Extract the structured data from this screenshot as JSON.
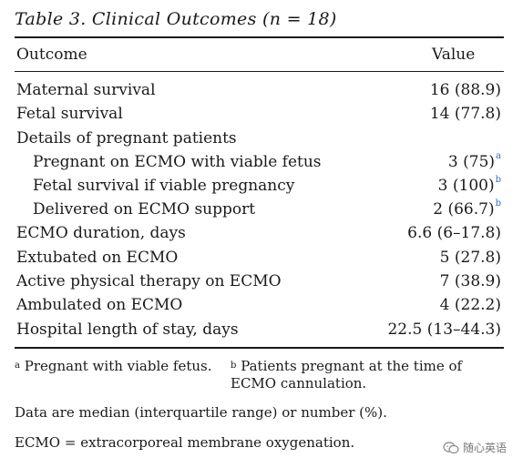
{
  "table": {
    "title": "Table 3. Clinical Outcomes (n = 18)",
    "headers": {
      "outcome": "Outcome",
      "value": "Value"
    },
    "rows": [
      {
        "label": "Maternal survival",
        "value": "16 (88.9)",
        "sup": ""
      },
      {
        "label": "Fetal survival",
        "value": "14 (77.8)",
        "sup": ""
      },
      {
        "label": "Details of pregnant patients",
        "value": "",
        "sup": ""
      },
      {
        "label": "Pregnant on ECMO with viable fetus",
        "value": "3 (75)",
        "sup": "a"
      },
      {
        "label": "Fetal survival if viable pregnancy",
        "value": "3 (100)",
        "sup": "b"
      },
      {
        "label": "Delivered on ECMO support",
        "value": "2 (66.7)",
        "sup": "b"
      },
      {
        "label": "ECMO duration, days",
        "value": "6.6 (6–17.8)",
        "sup": ""
      },
      {
        "label": "Extubated on ECMO",
        "value": "5 (27.8)",
        "sup": ""
      },
      {
        "label": "Active physical therapy on ECMO",
        "value": "7 (38.9)",
        "sup": ""
      },
      {
        "label": "Ambulated on ECMO",
        "value": "4 (22.2)",
        "sup": ""
      },
      {
        "label": "Hospital length of stay, days",
        "value": "22.5 (13–44.3)",
        "sup": ""
      }
    ]
  },
  "footnotes": {
    "a_mark": "a",
    "a_text": "Pregnant with viable fetus.",
    "b_mark": "b",
    "b_text": "Patients pregnant at the time of ECMO cannulation.",
    "data_note": "Data are median (interquartile range) or number (%).",
    "abbrev": "ECMO = extracorporeal membrane oxygenation."
  },
  "watermark": {
    "text": "随心英语",
    "icon": "wechat-icon"
  },
  "colors": {
    "sup_link": "#2a6fb8",
    "text": "#1a1a1a"
  }
}
